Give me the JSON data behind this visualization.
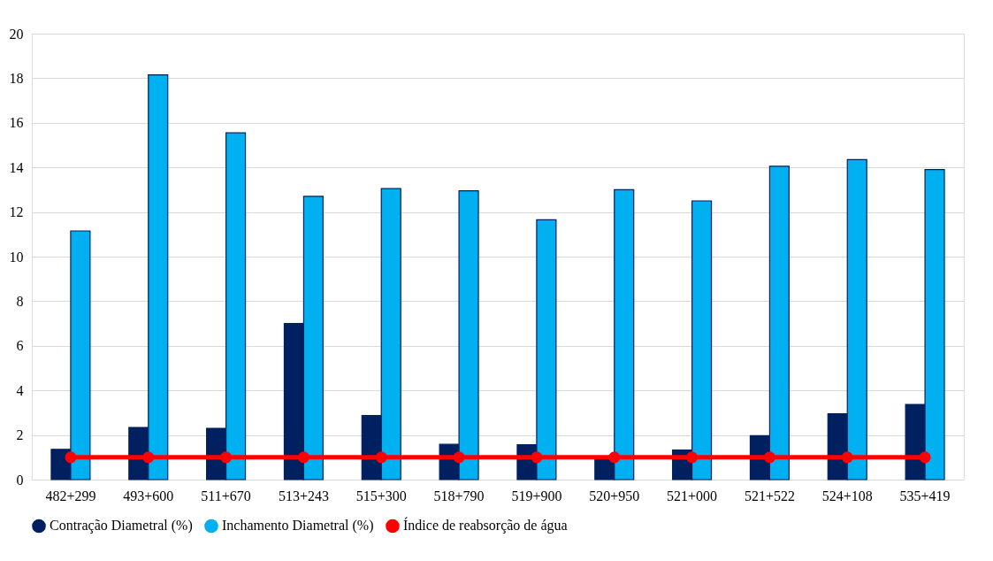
{
  "chart_data": {
    "type": "bar",
    "categories": [
      "482+299",
      "493+600",
      "511+670",
      "513+243",
      "515+300",
      "518+790",
      "519+900",
      "520+950",
      "521+000",
      "521+522",
      "524+108",
      "535+419"
    ],
    "series": [
      {
        "name": "Contração Diametral (%)",
        "color": "#002060",
        "values": [
          1.36,
          2.34,
          2.3,
          7.0,
          2.87,
          1.58,
          1.56,
          1.0,
          1.33,
          1.97,
          2.95,
          3.37
        ]
      },
      {
        "name": "Inchamento Diametral (%)",
        "color": "#00b0f0",
        "values": [
          11.15,
          18.15,
          15.55,
          12.7,
          13.05,
          12.95,
          11.65,
          13.0,
          12.5,
          14.05,
          14.35,
          13.9
        ]
      },
      {
        "name": "Índice de reabsorção de água",
        "color": "#ff0000",
        "type": "line",
        "marker": "circle",
        "line_style": "solid",
        "values": [
          1,
          1,
          1,
          1,
          1,
          1,
          1,
          1,
          1,
          1,
          1,
          1
        ]
      }
    ],
    "ylim": [
      0,
      20
    ],
    "yticks": [
      0,
      2,
      4,
      6,
      8,
      10,
      12,
      14,
      16,
      18,
      20
    ],
    "grid": "y",
    "legend": "bottom"
  }
}
